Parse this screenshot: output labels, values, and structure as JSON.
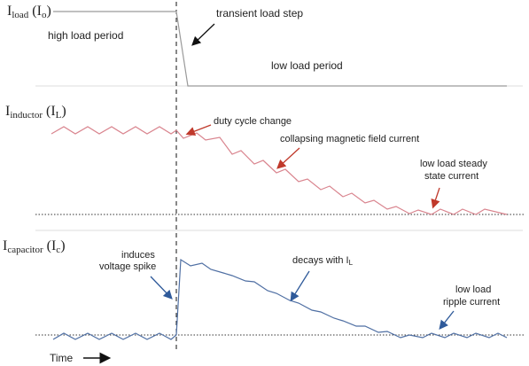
{
  "axes_labels": {
    "load": {
      "main": "I",
      "sub": "load",
      "paren_open": " (I",
      "paren_sub": "o",
      "paren_close": ")"
    },
    "inductor": {
      "main": "I",
      "sub": "inductor",
      "paren_open": " (I",
      "paren_sub": "L",
      "paren_close": ")"
    },
    "capacitor": {
      "main": "I",
      "sub": "capacitor",
      "paren_open": " (I",
      "paren_sub": "c",
      "paren_close": ")"
    }
  },
  "annotations": {
    "transient": "transient load step",
    "high_load": "high load period",
    "low_load": "low load period",
    "duty_cycle": "duty cycle change",
    "collapsing": "collapsing magnetic field current",
    "steady_line1": "low load steady",
    "steady_line2": "state current",
    "induces_line1": "induces",
    "induces_line2": "voltage spike",
    "decays_main": "decays with I",
    "decays_sub": "L",
    "ripple_line1": "low load",
    "ripple_line2": "ripple current"
  },
  "time_label": "Time",
  "colors": {
    "load_trace": "#9a9a9a",
    "inductor_trace": "#d9848e",
    "capacitor_trace": "#4f6fa3",
    "red_arrow": "#c0392b",
    "blue_arrow": "#2f5a9a",
    "black": "#111111"
  }
}
